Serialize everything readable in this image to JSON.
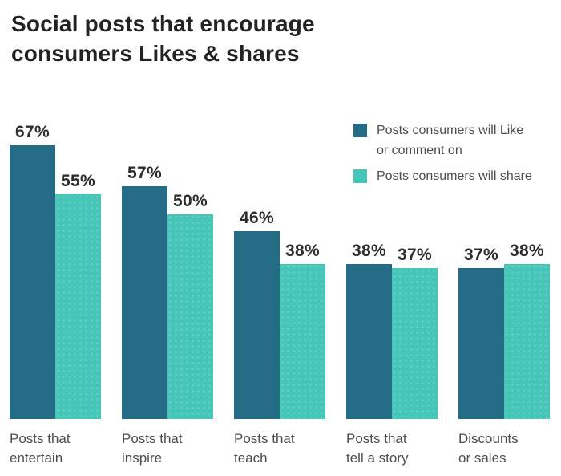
{
  "title": {
    "line1": "Social posts that encourage",
    "line2": "consumers Likes & shares"
  },
  "legend": {
    "items": [
      {
        "lines": [
          "Posts consumers will Like",
          "or comment on"
        ]
      },
      {
        "lines": [
          "Posts consumers will share"
        ]
      }
    ]
  },
  "colors": {
    "series_like": "#246b85",
    "series_share": "#45c6b8",
    "title_text": "#232323",
    "value_label_text": "#2d2d2d",
    "category_text": "#4d4d4d",
    "background": "#ffffff"
  },
  "chart_data": {
    "type": "bar",
    "title": "Social posts that encourage consumers Likes & shares",
    "categories": [
      "Posts that entertain",
      "Posts that inspire",
      "Posts that teach",
      "Posts that tell a story",
      "Discounts or sales"
    ],
    "category_lines": [
      [
        "Posts that",
        "entertain"
      ],
      [
        "Posts that",
        "inspire"
      ],
      [
        "Posts that",
        "teach"
      ],
      [
        "Posts that",
        "tell a story"
      ],
      [
        "Discounts",
        "or sales"
      ]
    ],
    "series": [
      {
        "name": "Posts consumers will Like or comment on",
        "color": "#246b85",
        "values": [
          67,
          57,
          46,
          38,
          37
        ]
      },
      {
        "name": "Posts consumers will share",
        "color": "#45c6b8",
        "values": [
          55,
          50,
          38,
          37,
          38
        ]
      }
    ],
    "value_suffix": "%",
    "xlabel": "",
    "ylabel": "",
    "ylim": [
      0,
      100
    ],
    "grid": false,
    "y_axis_visible": false,
    "legend_position": "top-right"
  }
}
